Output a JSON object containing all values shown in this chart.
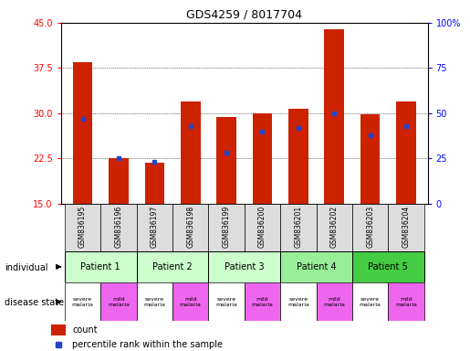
{
  "title": "GDS4259 / 8017704",
  "samples": [
    "GSM836195",
    "GSM836196",
    "GSM836197",
    "GSM836198",
    "GSM836199",
    "GSM836200",
    "GSM836201",
    "GSM836202",
    "GSM836203",
    "GSM836204"
  ],
  "bar_heights": [
    38.5,
    22.5,
    21.8,
    32.0,
    29.3,
    30.0,
    30.7,
    44.0,
    29.8,
    32.0
  ],
  "percentile_values": [
    47,
    25,
    23,
    43,
    28,
    40,
    42,
    50,
    38,
    43
  ],
  "bar_color": "#cc2200",
  "percentile_color": "#2244cc",
  "ylim_left": [
    15,
    45
  ],
  "ylim_right": [
    0,
    100
  ],
  "yticks_left": [
    15,
    22.5,
    30,
    37.5,
    45
  ],
  "yticks_right": [
    0,
    25,
    50,
    75,
    100
  ],
  "ytick_labels_right": [
    "0",
    "25",
    "50",
    "75",
    "100%"
  ],
  "patients": [
    {
      "name": "Patient 1",
      "cols": [
        0,
        1
      ],
      "color": "#ccffcc"
    },
    {
      "name": "Patient 2",
      "cols": [
        2,
        3
      ],
      "color": "#ccffcc"
    },
    {
      "name": "Patient 3",
      "cols": [
        4,
        5
      ],
      "color": "#ccffcc"
    },
    {
      "name": "Patient 4",
      "cols": [
        6,
        7
      ],
      "color": "#99ee99"
    },
    {
      "name": "Patient 5",
      "cols": [
        8,
        9
      ],
      "color": "#44cc44"
    }
  ],
  "disease_states": [
    {
      "label": "severe\nmalaria",
      "col": 0,
      "color": "#ffffff"
    },
    {
      "label": "mild\nmalaria",
      "col": 1,
      "color": "#ee66ee"
    },
    {
      "label": "severe\nmalaria",
      "col": 2,
      "color": "#ffffff"
    },
    {
      "label": "mild\nmalaria",
      "col": 3,
      "color": "#ee66ee"
    },
    {
      "label": "severe\nmalaria",
      "col": 4,
      "color": "#ffffff"
    },
    {
      "label": "mild\nmalaria",
      "col": 5,
      "color": "#ee66ee"
    },
    {
      "label": "severe\nmalaria",
      "col": 6,
      "color": "#ffffff"
    },
    {
      "label": "mild\nmalaria",
      "col": 7,
      "color": "#ee66ee"
    },
    {
      "label": "severe\nmalaria",
      "col": 8,
      "color": "#ffffff"
    },
    {
      "label": "mild\nmalaria",
      "col": 9,
      "color": "#ee66ee"
    }
  ],
  "legend_count_color": "#cc2200",
  "legend_percentile_color": "#2244cc",
  "sample_bg_color": "#dddddd",
  "label_individual": "individual",
  "label_disease": "disease state",
  "legend_count_text": "count",
  "legend_pct_text": "percentile rank within the sample"
}
